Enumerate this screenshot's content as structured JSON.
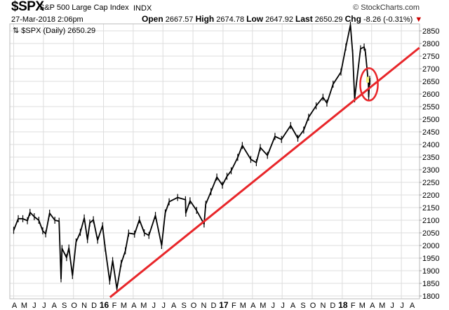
{
  "header": {
    "symbol": "$SPX",
    "name": "S&P 500 Large Cap Index",
    "exchange": "INDX",
    "brand": "© StockCharts.com",
    "date": "27-Mar-2018 2:06pm",
    "open_label": "Open",
    "open": "2667.57",
    "high_label": "High",
    "high": "2674.78",
    "low_label": "Low",
    "low": "2647.92",
    "last_label": "Last",
    "last": "2650.29",
    "chg_label": "Chg",
    "chg": "-8.26 (-0.31%)",
    "chg_arrow": "▼"
  },
  "legend": {
    "icon": "arrows-up-down-icon",
    "text": "$SPX (Daily) 2650.29"
  },
  "colors": {
    "price": "#000000",
    "trendline": "#e8262a",
    "grid": "#dddddd",
    "highlight": "#f5f07a"
  },
  "chart_data": {
    "type": "line",
    "title": "$SPX S&P 500 Large Cap Index",
    "xlabel": "",
    "ylabel": "",
    "xlim": [
      "2015-04-01",
      "2018-09-01"
    ],
    "ylim": [
      1790,
      2880
    ],
    "grid": true,
    "yticks": [
      1800,
      1850,
      1900,
      1950,
      2000,
      2050,
      2100,
      2150,
      2200,
      2250,
      2300,
      2350,
      2400,
      2450,
      2500,
      2550,
      2600,
      2650,
      2700,
      2750,
      2800,
      2850
    ],
    "xticks": [
      {
        "date": "2015-04-01",
        "label": "A"
      },
      {
        "date": "2015-05-01",
        "label": "M"
      },
      {
        "date": "2015-06-01",
        "label": "J"
      },
      {
        "date": "2015-07-01",
        "label": "J"
      },
      {
        "date": "2015-08-01",
        "label": "A"
      },
      {
        "date": "2015-09-01",
        "label": "S"
      },
      {
        "date": "2015-10-01",
        "label": "O"
      },
      {
        "date": "2015-11-01",
        "label": "N"
      },
      {
        "date": "2015-12-01",
        "label": "D"
      },
      {
        "date": "2016-01-01",
        "label": "16",
        "bold": true
      },
      {
        "date": "2016-02-01",
        "label": "F"
      },
      {
        "date": "2016-03-01",
        "label": "M"
      },
      {
        "date": "2016-04-01",
        "label": "A"
      },
      {
        "date": "2016-05-01",
        "label": "M"
      },
      {
        "date": "2016-06-01",
        "label": "J"
      },
      {
        "date": "2016-07-01",
        "label": "J"
      },
      {
        "date": "2016-08-01",
        "label": "A"
      },
      {
        "date": "2016-09-01",
        "label": "S"
      },
      {
        "date": "2016-10-01",
        "label": "O"
      },
      {
        "date": "2016-11-01",
        "label": "N"
      },
      {
        "date": "2016-12-01",
        "label": "D"
      },
      {
        "date": "2017-01-01",
        "label": "17",
        "bold": true
      },
      {
        "date": "2017-02-01",
        "label": "F"
      },
      {
        "date": "2017-03-01",
        "label": "M"
      },
      {
        "date": "2017-04-01",
        "label": "A"
      },
      {
        "date": "2017-05-01",
        "label": "M"
      },
      {
        "date": "2017-06-01",
        "label": "J"
      },
      {
        "date": "2017-07-01",
        "label": "J"
      },
      {
        "date": "2017-08-01",
        "label": "A"
      },
      {
        "date": "2017-09-01",
        "label": "S"
      },
      {
        "date": "2017-10-01",
        "label": "O"
      },
      {
        "date": "2017-11-01",
        "label": "N"
      },
      {
        "date": "2017-12-01",
        "label": "D"
      },
      {
        "date": "2018-01-01",
        "label": "18",
        "bold": true
      },
      {
        "date": "2018-02-01",
        "label": "F"
      },
      {
        "date": "2018-03-01",
        "label": "M"
      },
      {
        "date": "2018-04-01",
        "label": "A"
      },
      {
        "date": "2018-05-01",
        "label": "M"
      },
      {
        "date": "2018-06-01",
        "label": "J"
      },
      {
        "date": "2018-07-01",
        "label": "J"
      },
      {
        "date": "2018-08-01",
        "label": "A"
      }
    ],
    "series": [
      {
        "name": "$SPX (Daily)",
        "x": [
          "2015-04-01",
          "2015-04-15",
          "2015-04-29",
          "2015-05-13",
          "2015-05-21",
          "2015-06-03",
          "2015-06-17",
          "2015-06-29",
          "2015-07-08",
          "2015-07-20",
          "2015-08-05",
          "2015-08-18",
          "2015-08-24",
          "2015-08-27",
          "2015-09-10",
          "2015-09-17",
          "2015-09-28",
          "2015-10-09",
          "2015-10-22",
          "2015-11-03",
          "2015-11-13",
          "2015-11-20",
          "2015-12-01",
          "2015-12-14",
          "2015-12-29",
          "2016-01-06",
          "2016-01-20",
          "2016-01-29",
          "2016-02-11",
          "2016-02-24",
          "2016-03-08",
          "2016-03-18",
          "2016-04-05",
          "2016-04-20",
          "2016-05-05",
          "2016-05-19",
          "2016-06-08",
          "2016-06-27",
          "2016-07-08",
          "2016-07-20",
          "2016-08-15",
          "2016-09-08",
          "2016-09-09",
          "2016-09-22",
          "2016-10-12",
          "2016-11-04",
          "2016-11-09",
          "2016-11-25",
          "2016-12-13",
          "2016-12-30",
          "2017-01-13",
          "2017-01-26",
          "2017-02-15",
          "2017-03-01",
          "2017-03-27",
          "2017-04-13",
          "2017-04-25",
          "2017-05-17",
          "2017-06-09",
          "2017-06-29",
          "2017-07-27",
          "2017-08-18",
          "2017-09-05",
          "2017-09-20",
          "2017-10-13",
          "2017-11-03",
          "2017-11-15",
          "2017-12-04",
          "2017-12-28",
          "2018-01-12",
          "2018-01-26",
          "2018-02-02",
          "2018-02-08",
          "2018-02-26",
          "2018-03-09",
          "2018-03-13",
          "2018-03-22",
          "2018-03-23",
          "2018-03-26",
          "2018-03-27"
        ],
        "values": [
          2060,
          2106,
          2106,
          2098,
          2131,
          2114,
          2100,
          2058,
          2046,
          2128,
          2100,
          2096,
          1868,
          1988,
          1952,
          1990,
          1881,
          2014,
          2052,
          2109,
          2023,
          2089,
          2102,
          2021,
          2078,
          1990,
          1859,
          1940,
          1829,
          1929,
          1979,
          2049,
          2045,
          2102,
          2050,
          2040,
          2119,
          2000,
          2129,
          2173,
          2190,
          2181,
          2128,
          2177,
          2139,
          2085,
          2163,
          2213,
          2271,
          2239,
          2274,
          2296,
          2349,
          2396,
          2341,
          2328,
          2388,
          2357,
          2432,
          2420,
          2475,
          2425,
          2457,
          2508,
          2553,
          2587,
          2564,
          2639,
          2687,
          2786,
          2873,
          2762,
          2581,
          2779,
          2786,
          2765,
          2643,
          2588,
          2658,
          2650
        ]
      }
    ],
    "annotations": [
      {
        "type": "trendline",
        "from": {
          "date": "2016-01-21",
          "value": 1795
        },
        "to": {
          "date": "2018-08-25",
          "value": 2783
        }
      },
      {
        "type": "ellipse",
        "center": {
          "date": "2018-03-24",
          "value": 2638
        },
        "half_width_days": 27,
        "half_height_value": 64
      }
    ]
  }
}
